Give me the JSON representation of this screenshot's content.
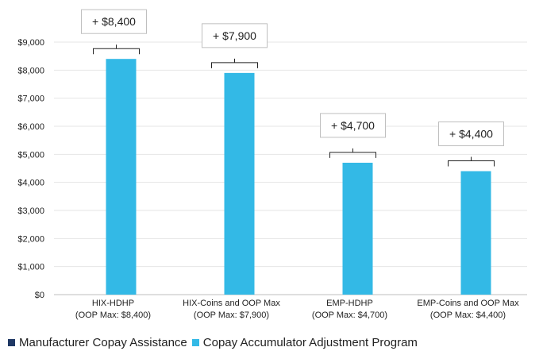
{
  "chart_data": {
    "type": "bar",
    "categories": [
      [
        "HIX-HDHP",
        "(OOP Max: $8,400)"
      ],
      [
        "HIX-Coins and OOP Max",
        "(OOP Max: $7,900)"
      ],
      [
        "EMP-HDHP",
        "(OOP Max: $4,700)"
      ],
      [
        "EMP-Coins and OOP Max",
        "(OOP Max: $4,400)"
      ]
    ],
    "series": [
      {
        "name": "Manufacturer Copay Assistance",
        "values": [
          0,
          0,
          0,
          0
        ],
        "color": "#1f3864"
      },
      {
        "name": "Copay Accumulator Adjustment Program",
        "values": [
          8400,
          7900,
          4700,
          4400
        ],
        "color": "#33b9e6"
      }
    ],
    "annotations": [
      "+ $8,400",
      "+ $7,900",
      "+ $4,700",
      "+ $4,400"
    ],
    "ylim": [
      0,
      9000
    ],
    "yticks": [
      "$0",
      "$1,000",
      "$2,000",
      "$3,000",
      "$4,000",
      "$5,000",
      "$6,000",
      "$7,000",
      "$8,000",
      "$9,000"
    ],
    "grid": true,
    "legend_position": "bottom",
    "title": "",
    "xlabel": "",
    "ylabel": ""
  }
}
